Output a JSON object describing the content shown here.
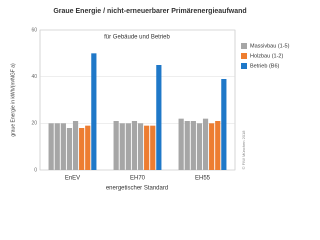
{
  "chart_data": {
    "type": "grouped-bar",
    "title": "Graue Energie / nicht-erneuerbarer Primärenergieaufwand",
    "subtitle": "für Gebäude und Betrieb",
    "ylabel": "graue Energie in kWh/(m²NGF a)",
    "xlabel": "energetischer Standard",
    "annotation": "© FIW München 2018",
    "categories": [
      "EnEV",
      "EH70",
      "EH55"
    ],
    "series": [
      {
        "name": "Massivbau (1-5)",
        "color": "#a6a6a6",
        "values": [
          [
            20,
            20,
            20,
            18,
            21
          ],
          [
            21,
            20,
            20,
            21,
            20
          ],
          [
            22,
            21,
            21,
            20,
            22
          ]
        ]
      },
      {
        "name": "Holzbau (1-2)",
        "color": "#ed7d31",
        "values": [
          [
            18,
            19
          ],
          [
            19,
            19
          ],
          [
            20,
            21
          ]
        ]
      },
      {
        "name": "Betrieb (B6)",
        "color": "#1f78c8",
        "values": [
          [
            50
          ],
          [
            45
          ],
          [
            39
          ]
        ]
      }
    ],
    "ylim": [
      0,
      60
    ],
    "yticks": [
      0,
      20,
      40,
      60
    ],
    "grid": true
  }
}
